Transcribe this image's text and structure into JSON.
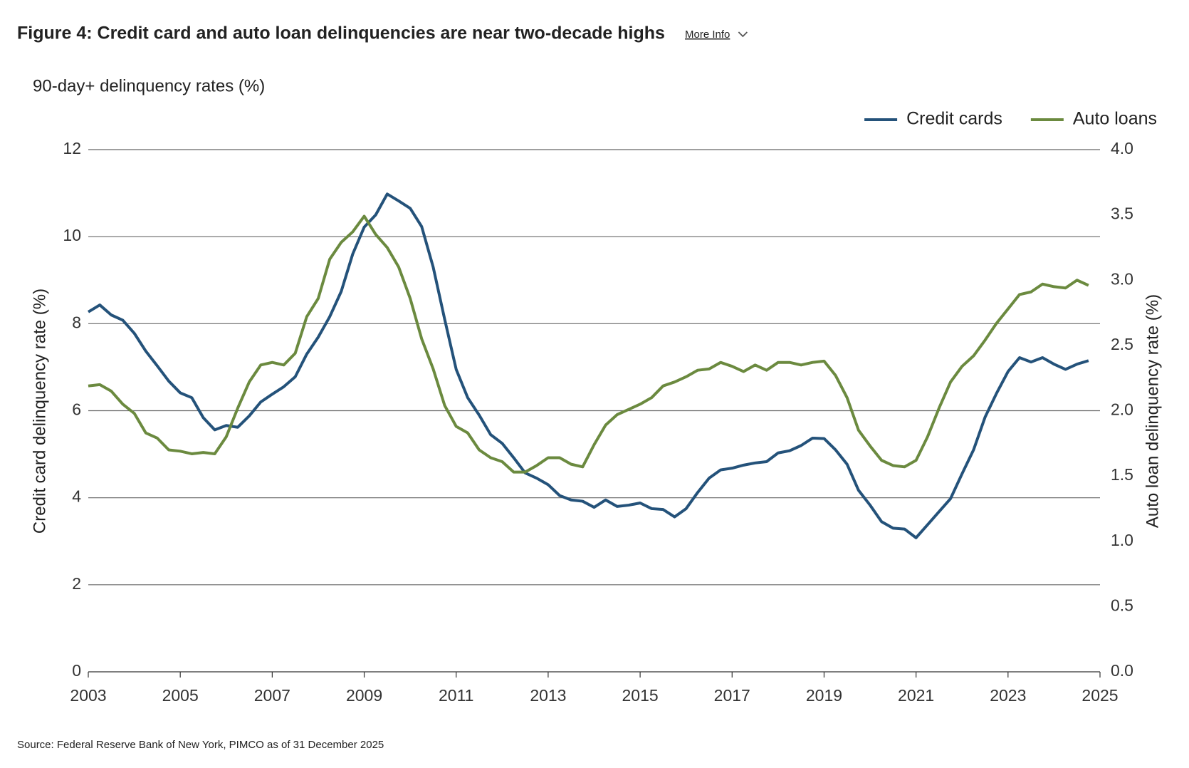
{
  "title": "Figure 4: Credit card and auto loan delinquencies are near two-decade highs",
  "more_info": "More Info",
  "source": "Source: Federal Reserve Bank of New York, PIMCO as of 31 December 2025",
  "chart_data": {
    "type": "line",
    "subtitle": "90-day+ delinquency rates (%)",
    "y_label": "Credit card delinquency rate (%)",
    "y2_label": "Auto loan delinquency rate (%)",
    "x": [
      2003,
      2003.25,
      2003.5,
      2003.75,
      2004,
      2004.25,
      2004.5,
      2004.75,
      2005,
      2005.25,
      2005.5,
      2005.75,
      2006,
      2006.25,
      2006.5,
      2006.75,
      2007,
      2007.25,
      2007.5,
      2007.75,
      2008,
      2008.25,
      2008.5,
      2008.75,
      2009,
      2009.25,
      2009.5,
      2009.75,
      2010,
      2010.25,
      2010.5,
      2010.75,
      2011,
      2011.25,
      2011.5,
      2011.75,
      2012,
      2012.25,
      2012.5,
      2012.75,
      2013,
      2013.25,
      2013.5,
      2013.75,
      2014,
      2014.25,
      2014.5,
      2014.75,
      2015,
      2015.25,
      2015.5,
      2015.75,
      2016,
      2016.25,
      2016.5,
      2016.75,
      2017,
      2017.25,
      2017.5,
      2017.75,
      2018,
      2018.25,
      2018.5,
      2018.75,
      2019,
      2019.25,
      2019.5,
      2019.75,
      2020,
      2020.25,
      2020.5,
      2020.75,
      2021,
      2021.25,
      2021.5,
      2021.75,
      2022,
      2022.25,
      2022.5,
      2022.75,
      2023,
      2023.25,
      2023.5,
      2023.75,
      2024,
      2024.25,
      2024.5,
      2024.75
    ],
    "series": [
      {
        "name": "Credit cards",
        "color": "#24527a",
        "axis": "y",
        "values": [
          8.27,
          8.43,
          8.2,
          8.08,
          7.78,
          7.37,
          7.03,
          6.68,
          6.41,
          6.3,
          5.84,
          5.56,
          5.66,
          5.62,
          5.88,
          6.2,
          6.38,
          6.55,
          6.78,
          7.3,
          7.69,
          8.16,
          8.74,
          9.6,
          10.22,
          10.5,
          10.98,
          10.82,
          10.65,
          10.23,
          9.3,
          8.1,
          6.95,
          6.3,
          5.9,
          5.45,
          5.25,
          4.92,
          4.57,
          4.45,
          4.3,
          4.05,
          3.95,
          3.92,
          3.78,
          3.95,
          3.8,
          3.83,
          3.88,
          3.75,
          3.73,
          3.56,
          3.75,
          4.12,
          4.45,
          4.64,
          4.68,
          4.75,
          4.8,
          4.83,
          5.03,
          5.08,
          5.2,
          5.37,
          5.36,
          5.1,
          4.77,
          4.17,
          3.83,
          3.45,
          3.3,
          3.28,
          3.08,
          3.38,
          3.68,
          3.98,
          4.55,
          5.1,
          5.85,
          6.4,
          6.9,
          7.22,
          7.12,
          7.22,
          7.07,
          6.95,
          7.07,
          7.15
        ]
      },
      {
        "name": "Auto loans",
        "color": "#6b8a3f",
        "axis": "y2",
        "values": [
          2.19,
          2.2,
          2.15,
          2.05,
          1.98,
          1.83,
          1.79,
          1.7,
          1.69,
          1.67,
          1.68,
          1.67,
          1.8,
          2.02,
          2.22,
          2.35,
          2.37,
          2.35,
          2.44,
          2.72,
          2.86,
          3.16,
          3.29,
          3.37,
          3.49,
          3.35,
          3.25,
          3.1,
          2.86,
          2.55,
          2.32,
          2.04,
          1.88,
          1.83,
          1.7,
          1.64,
          1.61,
          1.53,
          1.53,
          1.58,
          1.64,
          1.64,
          1.59,
          1.57,
          1.74,
          1.89,
          1.97,
          2.01,
          2.05,
          2.1,
          2.19,
          2.22,
          2.26,
          2.31,
          2.32,
          2.37,
          2.34,
          2.3,
          2.35,
          2.31,
          2.37,
          2.37,
          2.35,
          2.37,
          2.38,
          2.27,
          2.1,
          1.85,
          1.73,
          1.62,
          1.58,
          1.57,
          1.62,
          1.8,
          2.02,
          2.22,
          2.34,
          2.42,
          2.54,
          2.67,
          2.78,
          2.89,
          2.91,
          2.97,
          2.95,
          2.94,
          3.0,
          2.96
        ]
      }
    ],
    "xlim": [
      2003,
      2025
    ],
    "xticks": [
      2003,
      2005,
      2007,
      2009,
      2011,
      2013,
      2015,
      2017,
      2019,
      2021,
      2023,
      2025
    ],
    "ylim": [
      0,
      12
    ],
    "yticks": [
      0,
      2,
      4,
      6,
      8,
      10,
      12
    ],
    "y2lim": [
      0,
      4
    ],
    "y2ticks": [
      {
        "value": 0,
        "label": "0.0"
      },
      0.5,
      {
        "value": 1,
        "label": "1.0"
      },
      1.5,
      {
        "value": 2,
        "label": "2.0"
      },
      2.5,
      {
        "value": 3,
        "label": "3.0"
      },
      3.5,
      {
        "value": 4,
        "label": "4.0"
      }
    ],
    "grid": true,
    "legend": "top-right"
  }
}
